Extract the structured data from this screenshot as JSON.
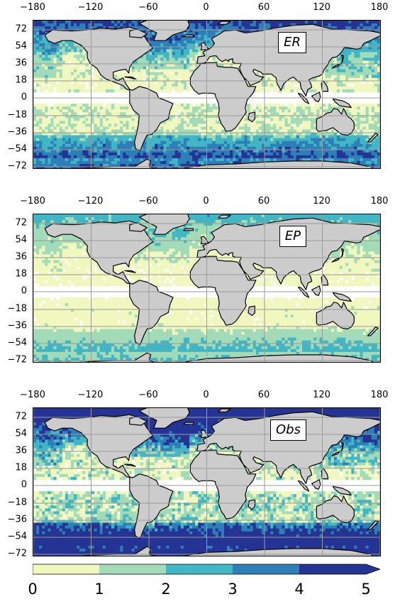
{
  "colorbar": {
    "ticks": [
      "0",
      "1",
      "2",
      "3",
      "4",
      "5"
    ],
    "colors": [
      "#f0f8bf",
      "#a3dbb8",
      "#41b6c4",
      "#2c7fb8",
      "#253494"
    ],
    "extend": "max"
  },
  "axes": {
    "lon_ticks": [
      "−180",
      "−120",
      "−60",
      "0",
      "60",
      "120",
      "180"
    ],
    "lat_ticks": [
      "72",
      "54",
      "36",
      "18",
      "0",
      "−18",
      "−36",
      "−54",
      "−72"
    ]
  },
  "panels": [
    {
      "label": "ER",
      "intensity": 1.0
    },
    {
      "label": "EP",
      "intensity": 0.55
    },
    {
      "label": "Obs",
      "intensity": 1.5
    }
  ],
  "colors": {
    "land": "#cccccc",
    "coast": "#000000",
    "grid": "#9a9a9a",
    "equatorial_gap": "#ffffff"
  }
}
